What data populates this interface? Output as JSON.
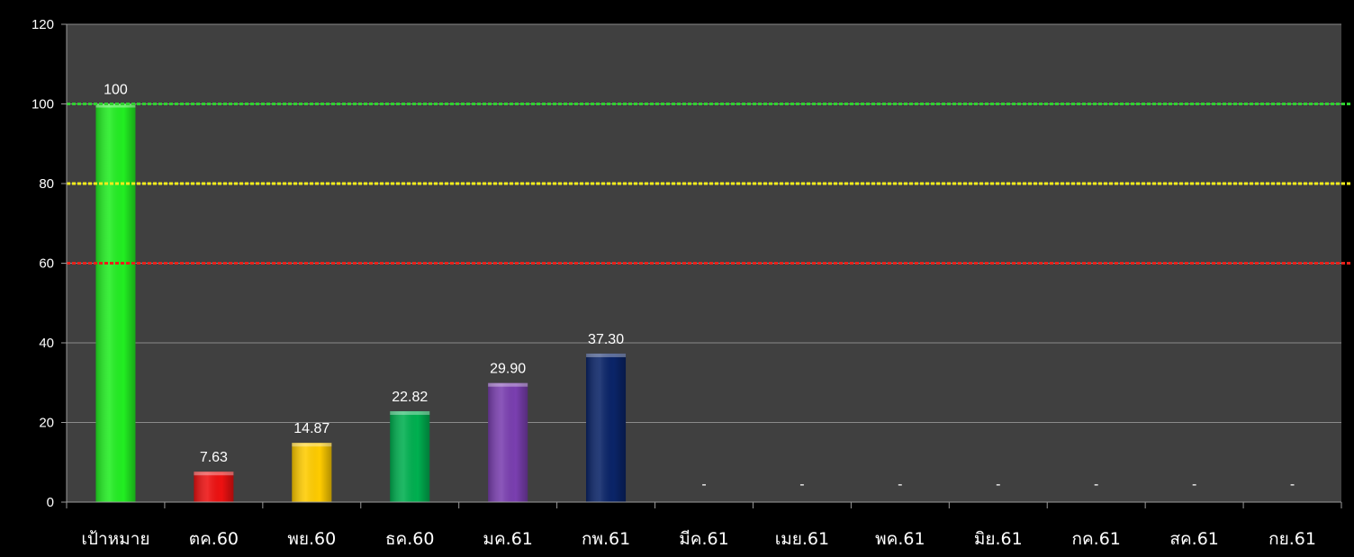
{
  "chart_data": {
    "type": "bar",
    "categories": [
      "เป้าหมาย",
      "ตค.60",
      "พย.60",
      "ธค.60",
      "มค.61",
      "กพ.61",
      "มีค.61",
      "เมย.61",
      "พค.61",
      "มิย.61",
      "กค.61",
      "สค.61",
      "กย.61"
    ],
    "values": [
      100,
      7.63,
      14.87,
      22.82,
      29.9,
      37.3,
      null,
      null,
      null,
      null,
      null,
      null,
      null
    ],
    "data_labels": [
      "100",
      "7.63",
      "14.87",
      "22.82",
      "29.90",
      "37.30",
      "-",
      "-",
      "-",
      "-",
      "-",
      "-",
      "-"
    ],
    "bar_colors": [
      "#22ee22",
      "#ee1111",
      "#ffcc00",
      "#00b050",
      "#7a3fb0",
      "#0a2468",
      "#888888",
      "#888888",
      "#888888",
      "#888888",
      "#888888",
      "#888888",
      "#888888"
    ],
    "ylim": [
      0,
      120
    ],
    "yticks": [
      0,
      20,
      40,
      60,
      80,
      100,
      120
    ],
    "grid": true,
    "reference_lines": [
      {
        "value": 100,
        "color": "#2fd12f"
      },
      {
        "value": 80,
        "color": "#f2ec1b"
      },
      {
        "value": 60,
        "color": "#e8201a"
      }
    ],
    "background": "#404040",
    "title": "",
    "xlabel": "",
    "ylabel": ""
  }
}
